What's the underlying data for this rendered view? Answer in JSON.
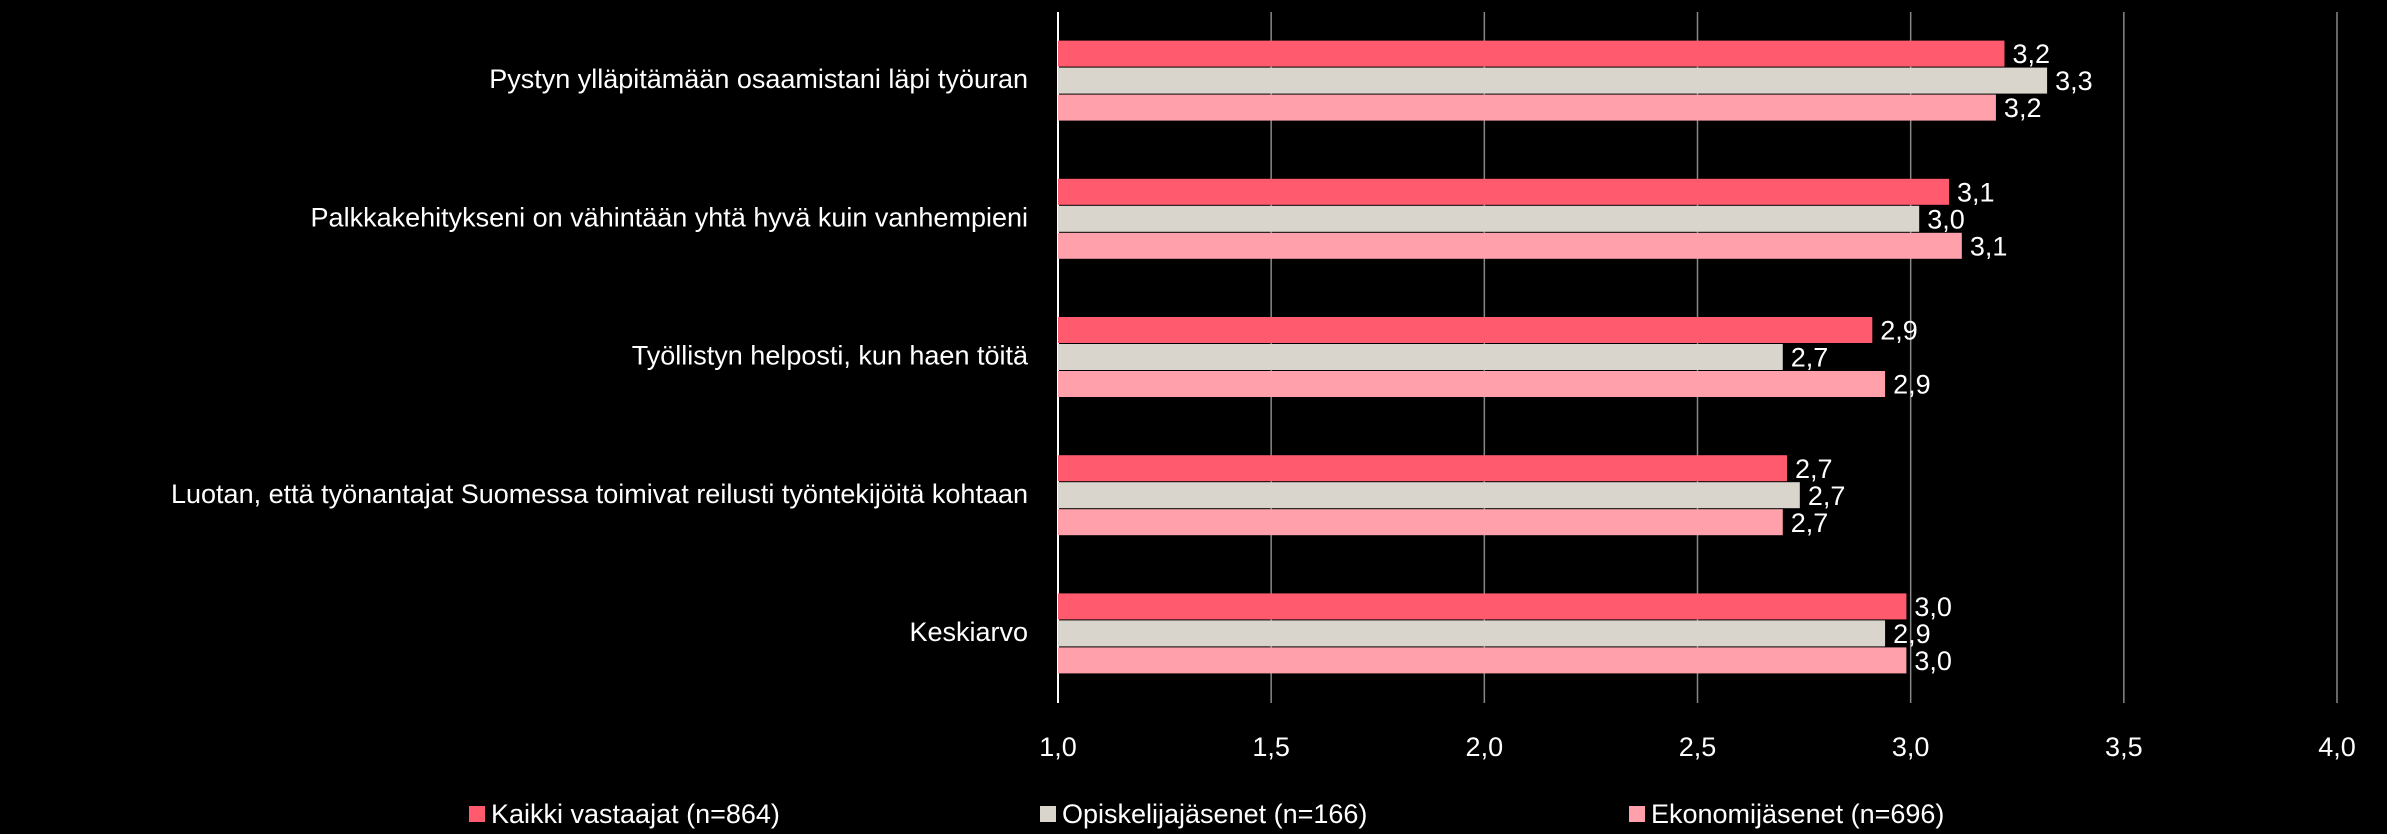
{
  "chart_data": {
    "type": "hbar",
    "categories": [
      "Pystyn ylläpitämään osaamistani läpi työuran",
      "Palkkakehitykseni on vähintään yhtä hyvä kuin vanhempieni",
      "Työllistyn helposti, kun haen töitä",
      "Luotan, että työnantajat Suomessa toimivat reilusti työntekijöitä kohtaan",
      "Keskiarvo"
    ],
    "series": [
      {
        "name": "Kaikki vastaajat (n=864)",
        "color": "#ff5a6e",
        "values": [
          3.22,
          3.09,
          2.91,
          2.71,
          2.99
        ],
        "value_labels": [
          "3,2",
          "3,1",
          "2,9",
          "2,7",
          "3,0"
        ]
      },
      {
        "name": "Opiskelijajäsenet (n=166)",
        "color": "#d9d5cc",
        "values": [
          3.32,
          3.02,
          2.7,
          2.74,
          2.94
        ],
        "value_labels": [
          "3,3",
          "3,0",
          "2,7",
          "2,7",
          "2,9"
        ]
      },
      {
        "name": "Ekonomijäsenet (n=696)",
        "color": "#ffa0aa",
        "values": [
          3.2,
          3.12,
          2.94,
          2.7,
          2.99
        ],
        "value_labels": [
          "3,2",
          "3,1",
          "2,9",
          "2,7",
          "3,0"
        ]
      }
    ],
    "xlim": [
      1,
      4
    ],
    "xticks": [
      {
        "value": 1,
        "label": "1,0"
      },
      {
        "value": 1.5,
        "label": "1,5"
      },
      {
        "value": 2,
        "label": "2,0"
      },
      {
        "value": 2.5,
        "label": "2,5"
      },
      {
        "value": 3,
        "label": "3,0"
      },
      {
        "value": 3.5,
        "label": "3,5"
      },
      {
        "value": 4,
        "label": "4,0"
      }
    ],
    "grid": true,
    "legend": "bottom"
  }
}
